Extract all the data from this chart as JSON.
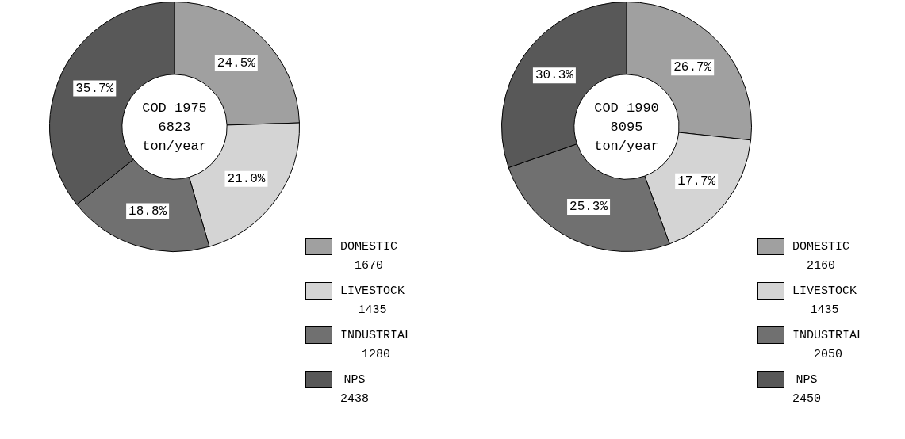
{
  "chart_data": [
    {
      "type": "donut",
      "title": "COD 1975",
      "annotations": [
        "6823",
        "ton/year"
      ],
      "categories": [
        "DOMESTIC\n1670",
        "LIVESTOCK\n1435",
        "INDUSTRIAL\n1280",
        "NPS\n2438"
      ],
      "values": [
        24.5,
        21.0,
        18.8,
        35.7
      ],
      "value_labels": [
        "24.5%",
        "21.0%",
        "18.8%",
        "35.7%"
      ],
      "colors": [
        "#a0a0a0",
        "#d4d4d4",
        "#707070",
        "#585858"
      ],
      "legend": "bottom right"
    },
    {
      "type": "donut",
      "title": "COD 1990",
      "annotations": [
        "8095",
        "ton/year"
      ],
      "categories": [
        "DOMESTIC\n2160",
        "LIVESTOCK\n1435",
        "INDUSTRIAL\n2050",
        "NPS\n2450"
      ],
      "values": [
        26.7,
        17.7,
        25.3,
        30.3
      ],
      "value_labels": [
        "26.7%",
        "17.7%",
        "25.3%",
        "30.3%"
      ],
      "colors": [
        "#a0a0a0",
        "#d4d4d4",
        "#707070",
        "#585858"
      ],
      "legend": "bottom right"
    }
  ]
}
